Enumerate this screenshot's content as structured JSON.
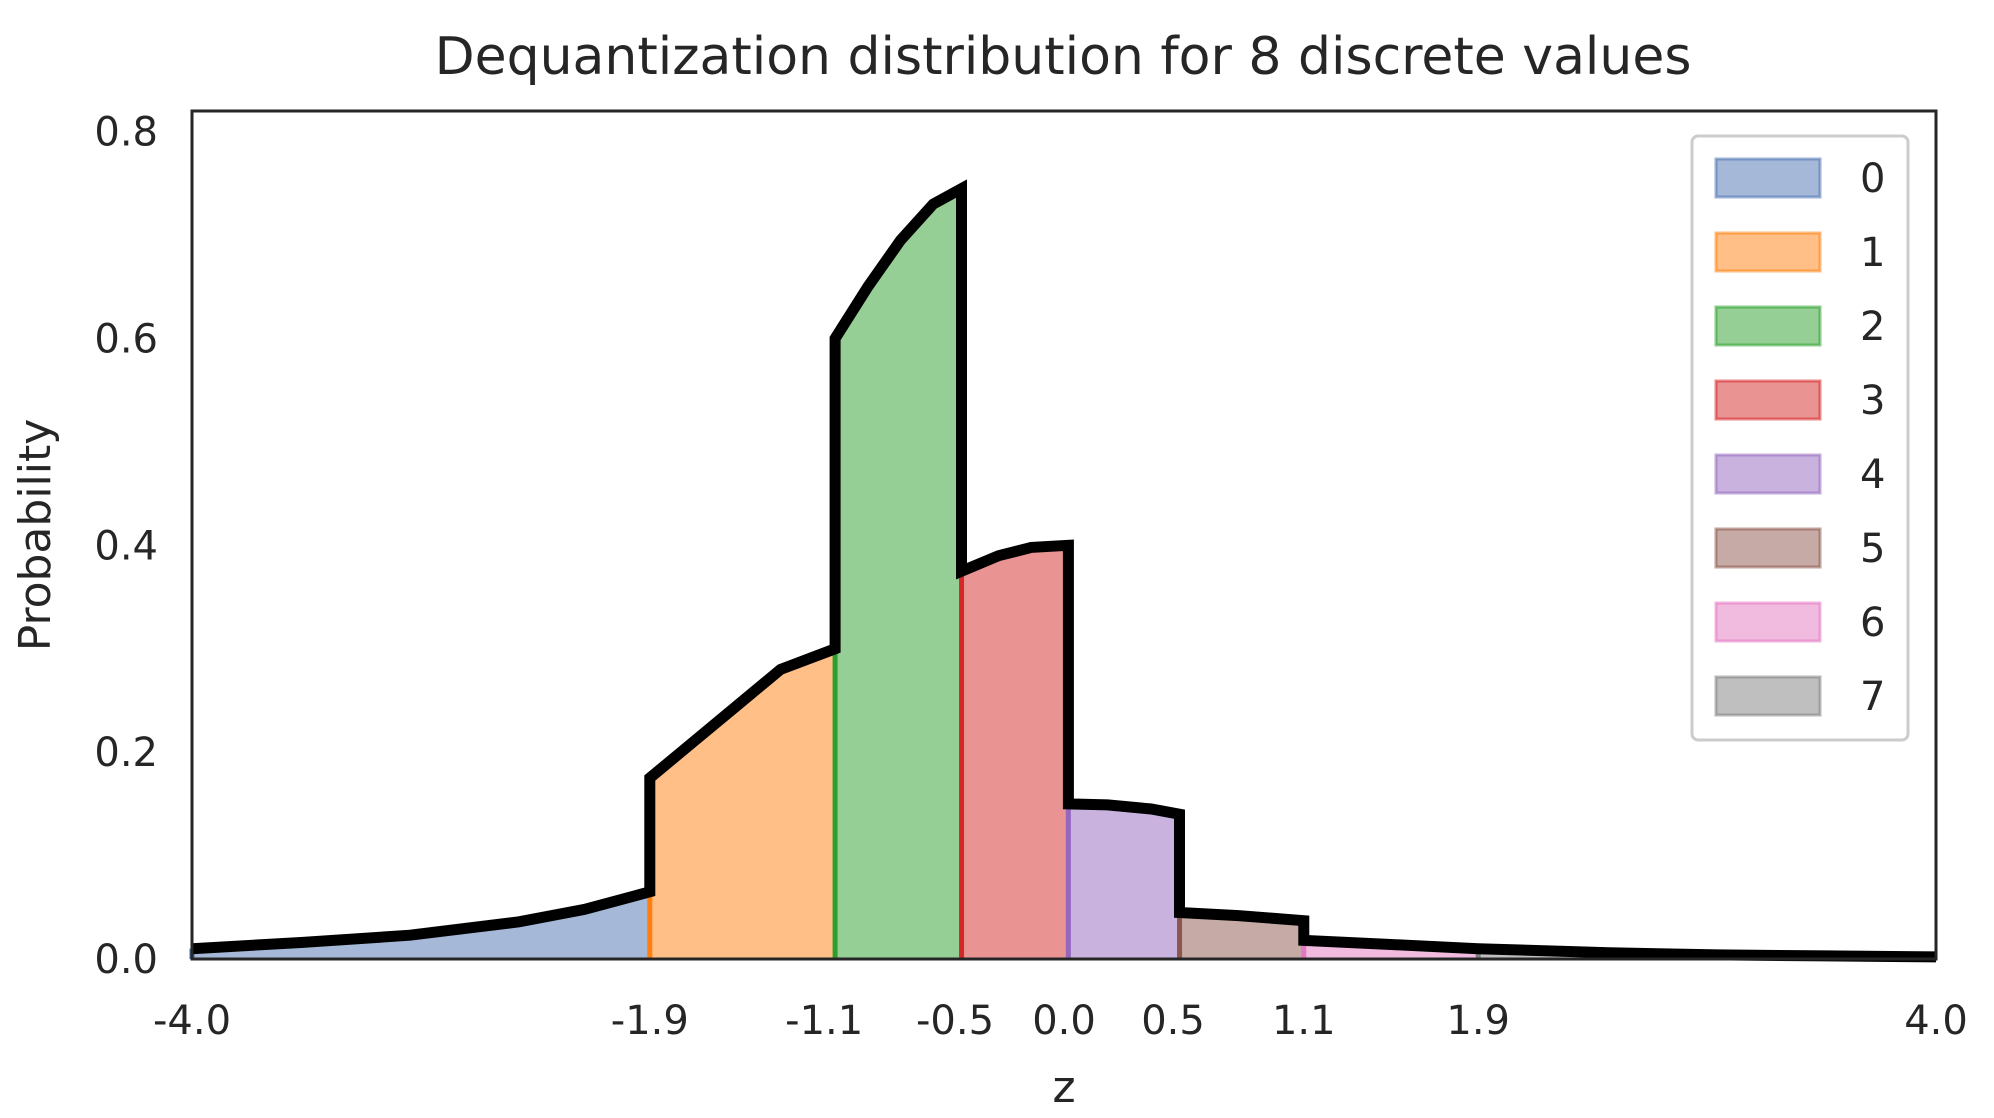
{
  "chart_data": {
    "type": "area",
    "title": "Dequantization distribution for 8 discrete values",
    "xlabel": "z",
    "ylabel": "Probability",
    "xlim": [
      -4.0,
      4.0
    ],
    "ylim": [
      0.0,
      0.82
    ],
    "xticks": [
      -4.0,
      -1.9,
      -1.1,
      -0.5,
      0.0,
      0.5,
      1.1,
      1.9,
      4.0
    ],
    "xtick_labels": [
      "-4.0",
      "-1.9",
      "-1.1",
      "-0.5",
      "0.0",
      "0.5",
      "1.1",
      "1.9",
      "4.0"
    ],
    "yticks": [
      0.0,
      0.2,
      0.4,
      0.6,
      0.8
    ],
    "ytick_labels": [
      "0.0",
      "0.2",
      "0.4",
      "0.6",
      "0.8"
    ],
    "grid": false,
    "legend_position": "top-right",
    "series": [
      {
        "name": "0",
        "color": "#4c72b0",
        "range": [
          -4.0,
          -1.9
        ],
        "points": [
          [
            -4.0,
            0.01
          ],
          [
            -3.5,
            0.016
          ],
          [
            -3.0,
            0.023
          ],
          [
            -2.5,
            0.036
          ],
          [
            -2.2,
            0.048
          ],
          [
            -1.9,
            0.065
          ]
        ]
      },
      {
        "name": "1",
        "color": "#ff7f0e",
        "range": [
          -1.9,
          -1.05
        ],
        "points": [
          [
            -1.9,
            0.175
          ],
          [
            -1.7,
            0.21
          ],
          [
            -1.5,
            0.245
          ],
          [
            -1.3,
            0.28
          ],
          [
            -1.05,
            0.3
          ]
        ]
      },
      {
        "name": "2",
        "color": "#2ca02c",
        "range": [
          -1.05,
          -0.47
        ],
        "points": [
          [
            -1.05,
            0.6
          ],
          [
            -0.9,
            0.65
          ],
          [
            -0.75,
            0.695
          ],
          [
            -0.6,
            0.73
          ],
          [
            -0.47,
            0.745
          ]
        ]
      },
      {
        "name": "3",
        "color": "#d62728",
        "range": [
          -0.47,
          0.02
        ],
        "points": [
          [
            -0.47,
            0.375
          ],
          [
            -0.3,
            0.39
          ],
          [
            -0.15,
            0.398
          ],
          [
            0.02,
            0.4
          ]
        ]
      },
      {
        "name": "4",
        "color": "#9467bd",
        "range": [
          0.02,
          0.53
        ],
        "points": [
          [
            0.02,
            0.15
          ],
          [
            0.2,
            0.149
          ],
          [
            0.4,
            0.145
          ],
          [
            0.53,
            0.14
          ]
        ]
      },
      {
        "name": "5",
        "color": "#8c564b",
        "range": [
          0.53,
          1.1
        ],
        "points": [
          [
            0.53,
            0.045
          ],
          [
            0.8,
            0.042
          ],
          [
            1.1,
            0.037
          ]
        ]
      },
      {
        "name": "6",
        "color": "#e377c2",
        "range": [
          1.1,
          1.9
        ],
        "points": [
          [
            1.1,
            0.018
          ],
          [
            1.5,
            0.014
          ],
          [
            1.9,
            0.01
          ]
        ]
      },
      {
        "name": "7",
        "color": "#7f7f7f",
        "range": [
          1.9,
          4.0
        ],
        "points": [
          [
            1.9,
            0.01
          ],
          [
            2.5,
            0.006
          ],
          [
            3.0,
            0.004
          ],
          [
            3.5,
            0.003
          ],
          [
            4.0,
            0.002
          ]
        ]
      }
    ]
  }
}
